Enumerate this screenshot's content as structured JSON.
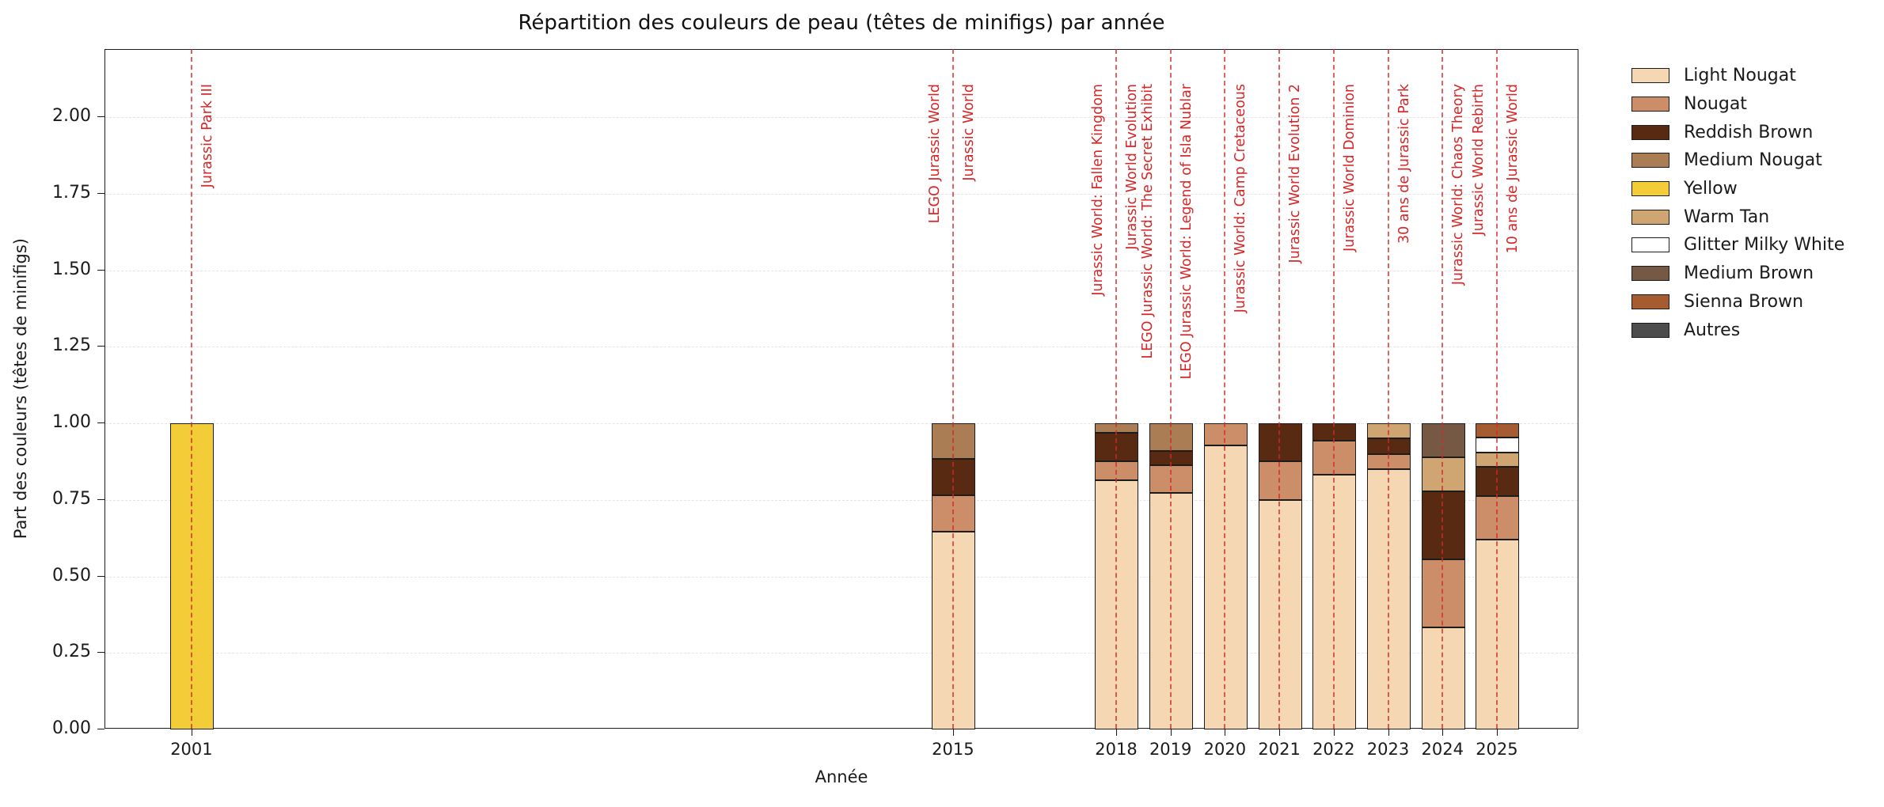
{
  "page_title": "Répartition des couleurs de peau (têtes de minifigs) par année",
  "chart_data": {
    "type": "bar",
    "stacked": true,
    "title": "Répartition des couleurs de peau (têtes de minifigs) par année",
    "xlabel": "Année",
    "ylabel": "Part des couleurs (têtes de minifigs)",
    "categories": [
      2001,
      2015,
      2018,
      2019,
      2020,
      2021,
      2022,
      2023,
      2024,
      2025
    ],
    "series": [
      {
        "name": "Light Nougat",
        "color": "#F6D7B3",
        "values": [
          0,
          0.647,
          0.813,
          0.773,
          0.929,
          0.75,
          0.833,
          0.85,
          0.333,
          0.619
        ]
      },
      {
        "name": "Nougat",
        "color": "#CC8E69",
        "values": [
          0,
          0.118,
          0.062,
          0.091,
          0.071,
          0.125,
          0.111,
          0.05,
          0.222,
          0.143
        ]
      },
      {
        "name": "Reddish Brown",
        "color": "#582A12",
        "values": [
          0,
          0.118,
          0.094,
          0.045,
          0,
          0.125,
          0.056,
          0.05,
          0.222,
          0.095
        ]
      },
      {
        "name": "Medium Nougat",
        "color": "#AA7D55",
        "values": [
          0,
          0.117,
          0.031,
          0.091,
          0,
          0,
          0,
          0,
          0,
          0
        ]
      },
      {
        "name": "Yellow",
        "color": "#F2CD37",
        "values": [
          1.0,
          0,
          0,
          0,
          0,
          0,
          0,
          0,
          0,
          0
        ]
      },
      {
        "name": "Warm Tan",
        "color": "#CFA572",
        "values": [
          0,
          0,
          0,
          0,
          0,
          0,
          0,
          0.05,
          0.111,
          0.048
        ]
      },
      {
        "name": "Glitter Milky White",
        "color": "#FFFFFF",
        "values": [
          0,
          0,
          0,
          0,
          0,
          0,
          0,
          0,
          0,
          0.048
        ]
      },
      {
        "name": "Medium Brown",
        "color": "#755945",
        "values": [
          0,
          0,
          0,
          0,
          0,
          0,
          0,
          0,
          0.112,
          0
        ]
      },
      {
        "name": "Sienna Brown",
        "color": "#A55C31",
        "values": [
          0,
          0,
          0,
          0,
          0,
          0,
          0,
          0,
          0,
          0.047
        ]
      },
      {
        "name": "Autres",
        "color": "#4D4D4D",
        "values": [
          0,
          0,
          0,
          0,
          0,
          0,
          0,
          0,
          0,
          0
        ]
      }
    ],
    "ylim": [
      0,
      2.22
    ],
    "yticks": [
      0,
      0.25,
      0.5,
      0.75,
      1,
      1.25,
      1.5,
      1.75,
      2
    ],
    "xlim": [
      1999.4,
      2026.5
    ],
    "bar_width_years": 0.8,
    "grid": "horizontal dashed",
    "legend_position": "outside right",
    "annotation_color": "#D62728",
    "events": [
      {
        "year": 2001,
        "label": "Jurassic Park III",
        "side": "right"
      },
      {
        "year": 2015,
        "label": "LEGO Jurassic World",
        "side": "left"
      },
      {
        "year": 2015,
        "label": "Jurassic World",
        "side": "right"
      },
      {
        "year": 2018,
        "label": "Jurassic World: Fallen Kingdom",
        "side": "left"
      },
      {
        "year": 2018,
        "label": "Jurassic World Evolution",
        "side": "right"
      },
      {
        "year": 2018,
        "label": "LEGO Jurassic World: The Secret Exhibit",
        "side": "right-outer"
      },
      {
        "year": 2019,
        "label": "LEGO Jurassic World: Legend of Isla Nublar",
        "side": "right"
      },
      {
        "year": 2020,
        "label": "Jurassic World: Camp Cretaceous",
        "side": "right"
      },
      {
        "year": 2021,
        "label": "Jurassic World Evolution 2",
        "side": "right"
      },
      {
        "year": 2022,
        "label": "Jurassic World Dominion",
        "side": "right"
      },
      {
        "year": 2023,
        "label": "30 ans de Jurassic Park",
        "side": "right"
      },
      {
        "year": 2024,
        "label": "Jurassic World: Chaos Theory",
        "side": "right"
      },
      {
        "year": 2025,
        "label": "Jurassic World Rebirth",
        "side": "left"
      },
      {
        "year": 2025,
        "label": "10 ans de Jurassic World",
        "side": "right"
      }
    ]
  }
}
